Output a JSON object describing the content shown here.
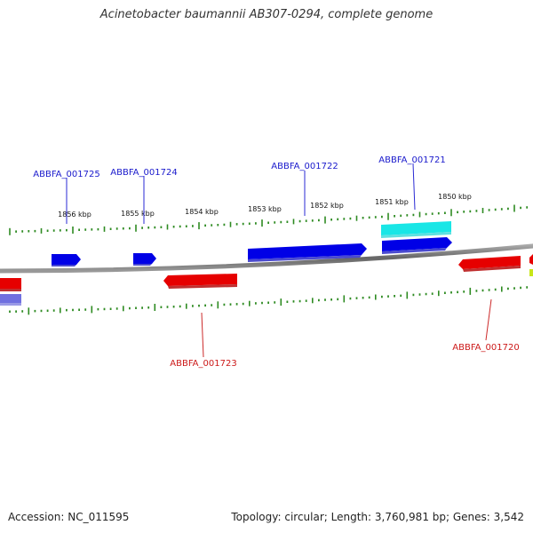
{
  "title": "Acinetobacter baumannii AB307-0294, complete genome",
  "footer": {
    "accession": "Accession: NC_011595",
    "summary": "Topology: circular; Length: 3,760,981 bp; Genes: 3,542"
  },
  "colors": {
    "background": "#ffffff",
    "backbone": "#888888",
    "tick": "#2e8b22",
    "forward_gene": "#0000e6",
    "reverse_gene": "#e60000",
    "highlight_gene": "#19e6e6",
    "faded_gene": "#7070e0",
    "forward_label": "#1a1acc",
    "reverse_label": "#cc1a1a"
  },
  "scale": {
    "unit": "kbp",
    "tick_labels": [
      "1856 kbp",
      "1855 kbp",
      "1854 kbp",
      "1853 kbp",
      "1852 kbp",
      "1851 kbp",
      "1850 kbp"
    ]
  },
  "genes": [
    {
      "id": "ABBFA_001725",
      "strand": "forward",
      "labeled": true
    },
    {
      "id": "ABBFA_001724",
      "strand": "forward",
      "labeled": true
    },
    {
      "id": "ABBFA_001722",
      "strand": "forward",
      "labeled": true
    },
    {
      "id": "ABBFA_001721",
      "strand": "forward",
      "labeled": true
    },
    {
      "id": "ABBFA_001723",
      "strand": "reverse",
      "labeled": true
    },
    {
      "id": "ABBFA_001720",
      "strand": "reverse",
      "labeled": true
    }
  ]
}
